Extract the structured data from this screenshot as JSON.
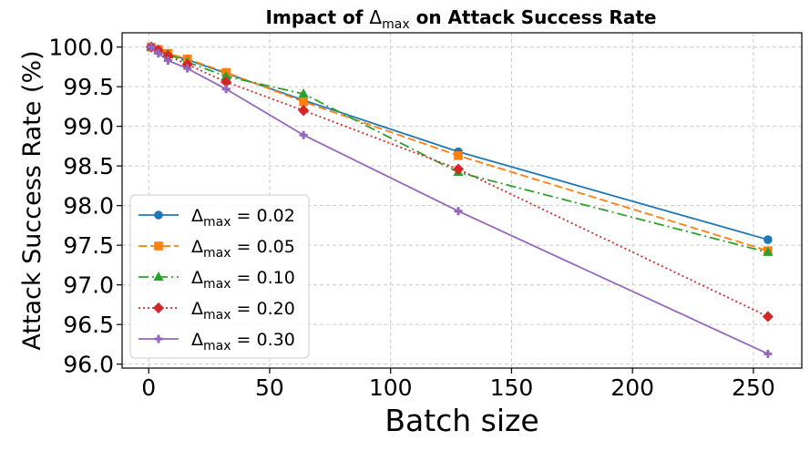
{
  "chart_data": {
    "type": "line",
    "title_prefix": "Impact of ",
    "title_symbol": "Δ",
    "title_subscript": "max",
    "title_suffix": " on Attack Success Rate",
    "xlabel": "Batch size",
    "ylabel": "Attack Success Rate (%)",
    "xlim": [
      -11,
      270
    ],
    "ylim": [
      95.95,
      100.18
    ],
    "xticks": [
      0,
      50,
      100,
      150,
      200,
      250
    ],
    "xtick_labels": [
      "0",
      "50",
      "100",
      "150",
      "200",
      "250"
    ],
    "yticks": [
      96.0,
      96.5,
      97.0,
      97.5,
      98.0,
      98.5,
      99.0,
      99.5,
      100.0
    ],
    "ytick_labels": [
      "96.0",
      "96.5",
      "97.0",
      "97.5",
      "98.0",
      "98.5",
      "99.0",
      "99.5",
      "100.0"
    ],
    "grid": true,
    "legend_position": "lower-left",
    "x": [
      1,
      4,
      8,
      16,
      32,
      64,
      128,
      256
    ],
    "series": [
      {
        "name": "Δmax = 0.02",
        "label_symbol": "Δ",
        "label_sub": "max",
        "label_value": " = 0.02",
        "color": "#1f77b4",
        "dash": "",
        "marker": "circle",
        "values": [
          100.0,
          99.96,
          99.91,
          99.84,
          99.67,
          99.33,
          98.68,
          97.57
        ]
      },
      {
        "name": "Δmax = 0.05",
        "label_symbol": "Δ",
        "label_sub": "max",
        "label_value": " = 0.05",
        "color": "#ff7f0e",
        "dash": "9,4",
        "marker": "square",
        "values": [
          100.0,
          99.97,
          99.92,
          99.85,
          99.68,
          99.31,
          98.63,
          97.43
        ]
      },
      {
        "name": "Δmax = 0.10",
        "label_symbol": "Δ",
        "label_sub": "max",
        "label_value": " = 0.10",
        "color": "#2ca02c",
        "dash": "11,4,2,4",
        "marker": "triangle",
        "values": [
          100.0,
          99.96,
          99.91,
          99.81,
          99.63,
          99.41,
          98.42,
          97.41
        ]
      },
      {
        "name": "Δmax = 0.20",
        "label_symbol": "Δ",
        "label_sub": "max",
        "label_value": " = 0.20",
        "color": "#d62728",
        "dash": "2,3",
        "marker": "diamond",
        "values": [
          100.0,
          99.96,
          99.89,
          99.78,
          99.56,
          99.2,
          98.46,
          96.6
        ]
      },
      {
        "name": "Δmax = 0.30",
        "label_symbol": "Δ",
        "label_sub": "max",
        "label_value": " = 0.30",
        "color": "#9467bd",
        "dash": "",
        "marker": "plus",
        "values": [
          100.0,
          99.92,
          99.83,
          99.73,
          99.47,
          98.89,
          97.93,
          96.13
        ]
      }
    ]
  }
}
